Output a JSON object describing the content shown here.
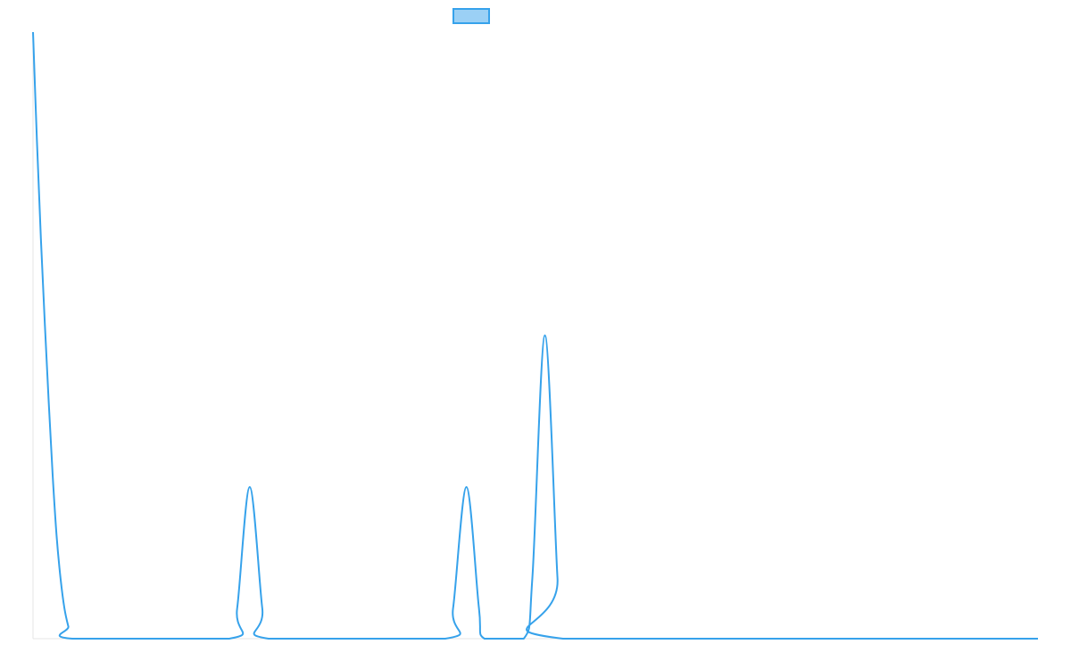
{
  "chart_data": {
    "type": "line",
    "legend": {
      "placement": "top-center",
      "label": "",
      "swatch_fill": "#9bd0f5",
      "swatch_stroke": "#36a2eb"
    },
    "series_color": "#36a2eb",
    "axis_color": "#e6e6e6",
    "grid": false,
    "xlim": [
      0,
      128
    ],
    "ylim": [
      0,
      100
    ],
    "x_ticks_visible": false,
    "y_ticks_visible": false,
    "points": [
      [
        0,
        100
      ],
      [
        0.5,
        82
      ],
      [
        1,
        66
      ],
      [
        1.5,
        52
      ],
      [
        2,
        39
      ],
      [
        2.5,
        27
      ],
      [
        3,
        17
      ],
      [
        3.5,
        10
      ],
      [
        4,
        5
      ],
      [
        4.5,
        2
      ],
      [
        5,
        0
      ],
      [
        25,
        0
      ],
      [
        26,
        5
      ],
      [
        27.6,
        25
      ],
      [
        29.2,
        5
      ],
      [
        30,
        0
      ],
      [
        52.5,
        0
      ],
      [
        53.5,
        5
      ],
      [
        55.2,
        25
      ],
      [
        56.8,
        5
      ],
      [
        57.5,
        0
      ],
      [
        62.5,
        0
      ],
      [
        63.6,
        10
      ],
      [
        65.2,
        50
      ],
      [
        66.8,
        10
      ],
      [
        67.5,
        0
      ],
      [
        128,
        0
      ]
    ]
  }
}
